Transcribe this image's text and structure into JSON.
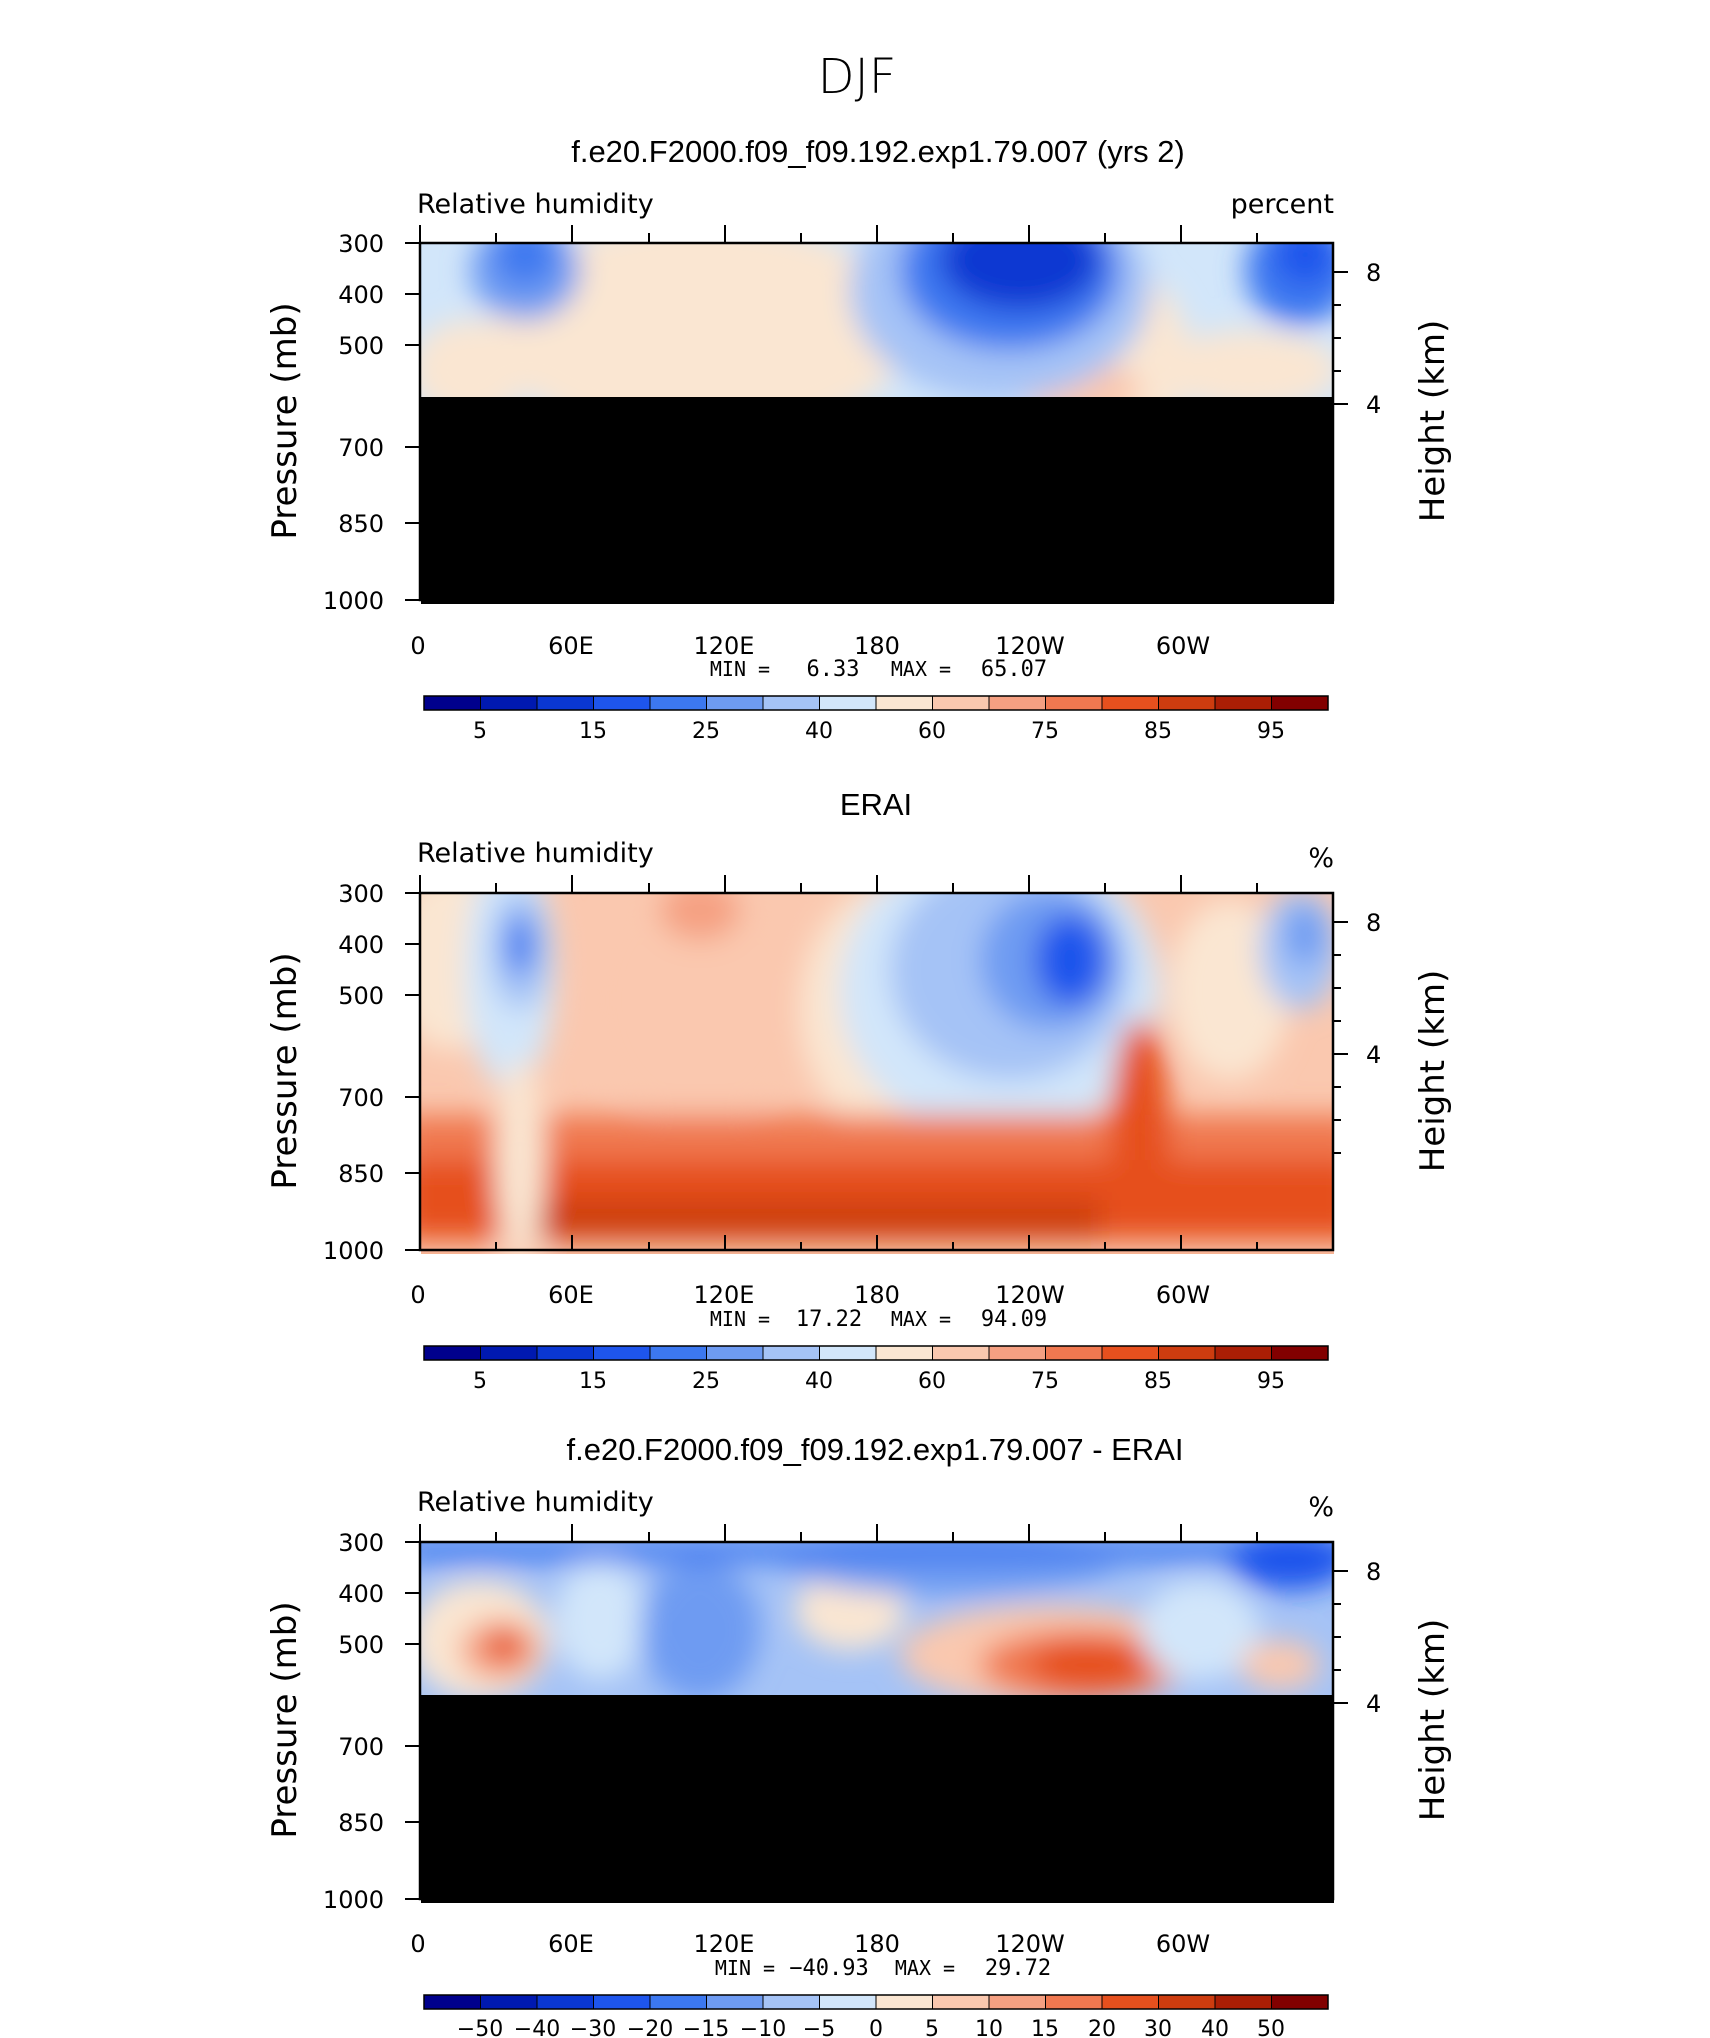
{
  "figure_title": "DJF",
  "chart_data": [
    {
      "type": "heatmap",
      "title": "f.e20.F2000.f09_f09.192.exp1.79.007 (yrs 2)",
      "left_label": "Relative humidity",
      "right_label": "percent",
      "ylabel": "Pressure (mb)",
      "ylabel_right": "Height (km)",
      "x_ticks": [
        "0",
        "60E",
        "120E",
        "180",
        "120W",
        "60W"
      ],
      "y_ticks": [
        "300",
        "400",
        "500",
        "700",
        "850",
        "1000"
      ],
      "y_right_ticks": [
        "8",
        "4"
      ],
      "stats": {
        "min_label": "MIN =",
        "min": "6.33",
        "max_label": "MAX =",
        "max": "65.07"
      },
      "colorbar_labels": [
        "5",
        "15",
        "25",
        "40",
        "60",
        "75",
        "85",
        "95"
      ],
      "masked_below_mb": 600,
      "field": "model"
    },
    {
      "type": "heatmap",
      "title": "ERAI",
      "left_label": "Relative humidity",
      "right_label": "%",
      "ylabel": "Pressure (mb)",
      "ylabel_right": "Height (km)",
      "x_ticks": [
        "0",
        "60E",
        "120E",
        "180",
        "120W",
        "60W"
      ],
      "y_ticks": [
        "300",
        "400",
        "500",
        "700",
        "850",
        "1000"
      ],
      "y_right_ticks": [
        "8",
        "4"
      ],
      "stats": {
        "min_label": "MIN =",
        "min": "17.22",
        "max_label": "MAX =",
        "max": "94.09"
      },
      "colorbar_labels": [
        "5",
        "15",
        "25",
        "40",
        "60",
        "75",
        "85",
        "95"
      ],
      "masked_below_mb": null,
      "field": "obs"
    },
    {
      "type": "heatmap",
      "title": "f.e20.F2000.f09_f09.192.exp1.79.007 - ERAI",
      "left_label": "Relative humidity",
      "right_label": "%",
      "ylabel": "Pressure (mb)",
      "ylabel_right": "Height (km)",
      "x_ticks": [
        "0",
        "60E",
        "120E",
        "180",
        "120W",
        "60W"
      ],
      "y_ticks": [
        "300",
        "400",
        "500",
        "700",
        "850",
        "1000"
      ],
      "y_right_ticks": [
        "8",
        "4"
      ],
      "stats": {
        "min_label": "MIN =",
        "min": "−40.93",
        "max_label": "MAX =",
        "max": "29.72"
      },
      "colorbar_labels": [
        "−50",
        "−40",
        "−30",
        "−20",
        "−15",
        "−10",
        "−5",
        "0",
        "5",
        "10",
        "15",
        "20",
        "30",
        "40",
        "50"
      ],
      "masked_below_mb": 600,
      "field": "diff"
    }
  ],
  "colors": {
    "colorbar": [
      "#00008c",
      "#0019b0",
      "#0a37d2",
      "#1e55ec",
      "#3c78f0",
      "#6e9bf2",
      "#a5c3f6",
      "#d2e6fa",
      "#fae6d2",
      "#fac8af",
      "#f5a082",
      "#f07850",
      "#e6501e",
      "#cd3c0f",
      "#aa1e05",
      "#820000"
    ],
    "mask": "#000000"
  }
}
